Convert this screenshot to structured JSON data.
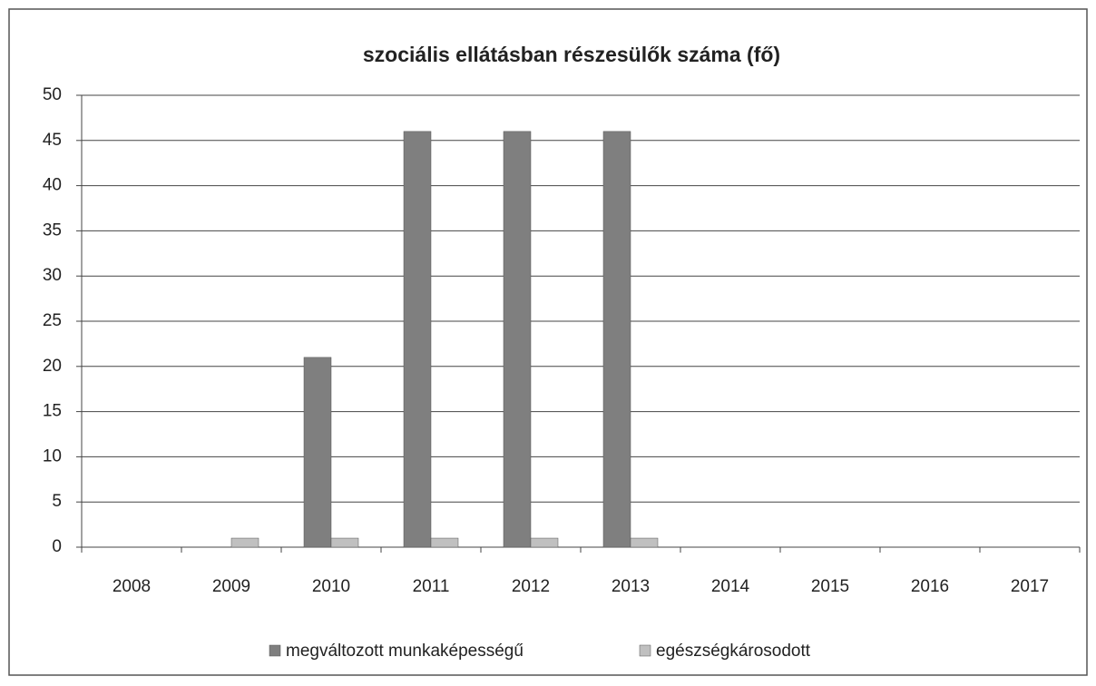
{
  "chart_data": {
    "type": "bar",
    "title": "szociális ellátásban részesülők száma (fő)",
    "categories": [
      "2008",
      "2009",
      "2010",
      "2011",
      "2012",
      "2013",
      "2014",
      "2015",
      "2016",
      "2017"
    ],
    "series": [
      {
        "name": "megváltozott munkaképességű",
        "color": "#7f7f7f",
        "values": [
          null,
          null,
          21,
          46,
          46,
          46,
          null,
          null,
          null,
          null
        ]
      },
      {
        "name": "egészségkárosodott",
        "color": "#c0c0c0",
        "values": [
          null,
          1,
          1,
          1,
          1,
          1,
          null,
          null,
          null,
          null
        ]
      }
    ],
    "ylim": [
      0,
      50
    ],
    "yticks": [
      0,
      5,
      10,
      15,
      20,
      25,
      30,
      35,
      40,
      45,
      50
    ],
    "grid": true,
    "legend": "bottom"
  }
}
